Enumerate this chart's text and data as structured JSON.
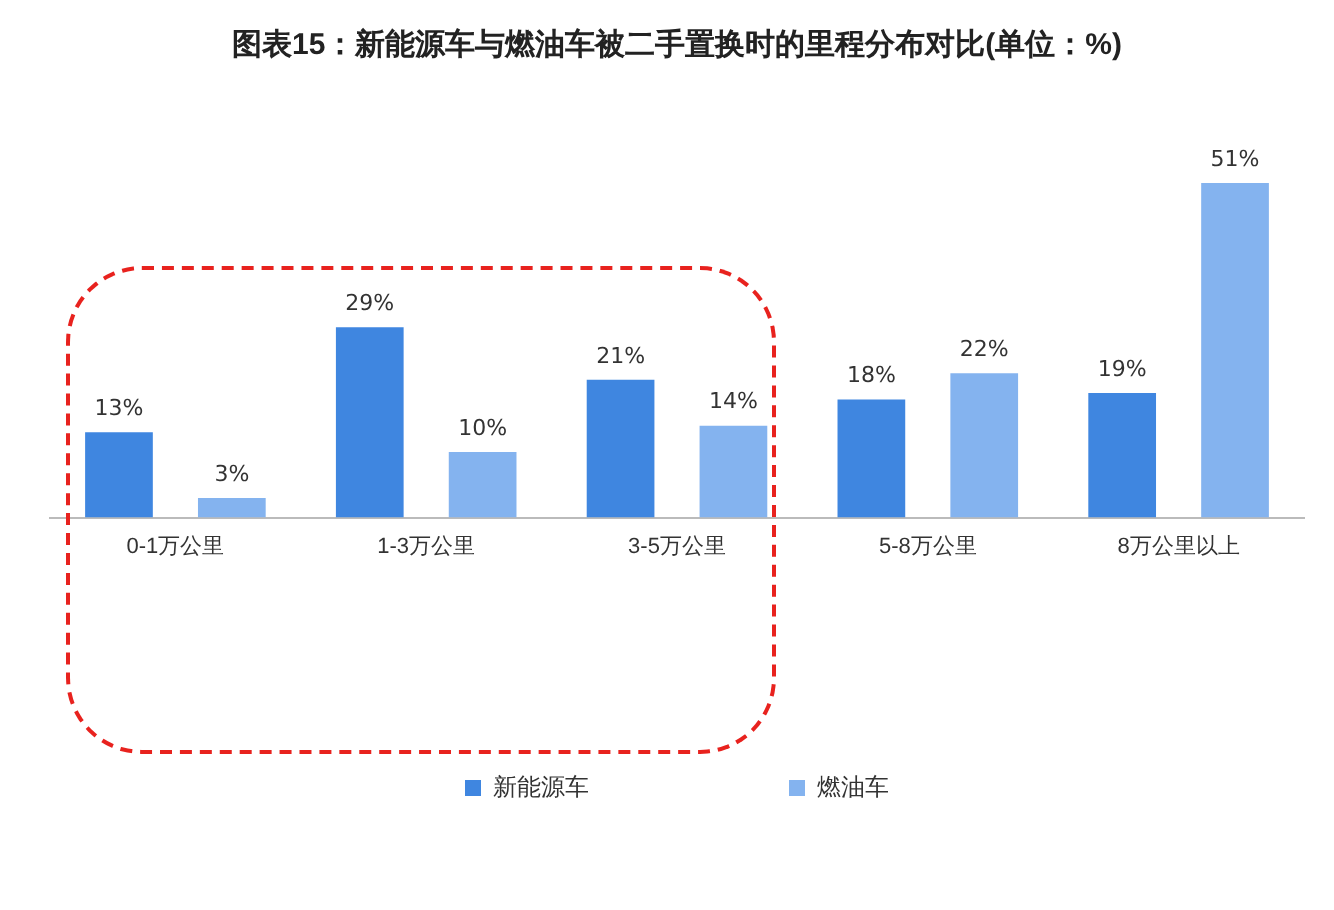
{
  "chart_data": {
    "type": "bar",
    "title": "图表15：新能源车与燃油车被二手置换时的里程分布对比(单位：%)",
    "categories": [
      "0-1万公里",
      "1-3万公里",
      "3-5万公里",
      "5-8万公里",
      "8万公里以上"
    ],
    "series": [
      {
        "name": "新能源车",
        "color": "#3f86e0",
        "values": [
          13,
          29,
          21,
          18,
          19
        ],
        "value_labels": [
          "13%",
          "29%",
          "21%",
          "18%",
          "19%"
        ]
      },
      {
        "name": "燃油车",
        "color": "#84b3ef",
        "values": [
          3,
          10,
          14,
          22,
          51
        ],
        "value_labels": [
          "3%",
          "10%",
          "14%",
          "22%",
          "51%"
        ]
      }
    ],
    "legend": "bottom",
    "grid": false
  }
}
